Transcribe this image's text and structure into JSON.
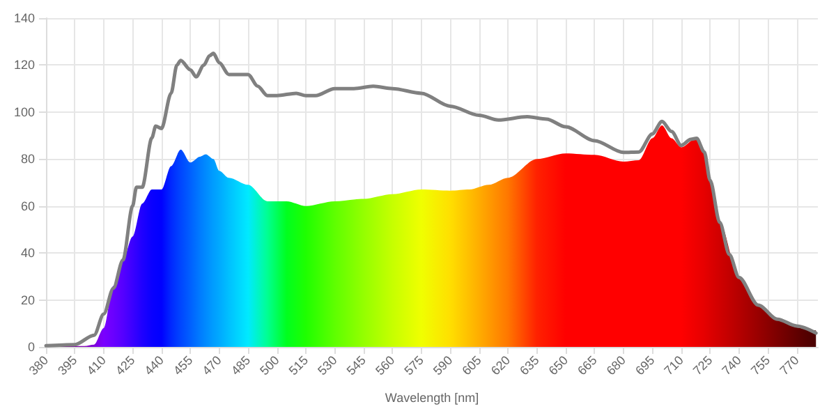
{
  "chart_data": {
    "type": "area",
    "xlabel": "Wavelength [nm]",
    "xlim": [
      380,
      781
    ],
    "xticks": [
      380,
      395,
      410,
      425,
      440,
      455,
      470,
      485,
      500,
      515,
      530,
      545,
      560,
      575,
      590,
      605,
      620,
      635,
      650,
      665,
      680,
      695,
      710,
      725,
      740,
      755,
      770
    ],
    "ylim": [
      0,
      140
    ],
    "yticks": [
      0,
      20,
      40,
      60,
      80,
      100,
      120,
      140
    ],
    "grid": true,
    "marker": "none",
    "line_style": "solid",
    "series": [
      {
        "x": [
          380,
          400,
          405,
          410,
          415,
          420,
          425,
          430,
          435,
          440,
          445,
          450,
          455,
          460,
          463,
          467,
          470,
          475,
          485,
          495,
          505,
          515,
          530,
          545,
          560,
          575,
          590,
          600,
          610,
          620,
          635,
          650,
          665,
          680,
          688,
          695,
          700,
          705,
          710,
          718,
          722,
          725,
          730,
          740,
          750,
          760,
          770,
          775,
          780
        ],
        "values": [
          0.2,
          0.4,
          1,
          8,
          26,
          37,
          47,
          61,
          67,
          67,
          77,
          84,
          78.5,
          81,
          82,
          80,
          75,
          72,
          69,
          62,
          62,
          60,
          62,
          63,
          65,
          67,
          66.5,
          67,
          69,
          72,
          80,
          82.4,
          81.8,
          78.9,
          79.5,
          88.8,
          94.3,
          88.8,
          85,
          89,
          83,
          71,
          53,
          29.6,
          17.4,
          12.2,
          8.3,
          7.5,
          7
        ],
        "colors": [
          "#610061",
          "#8300b5",
          "#7e00db",
          "#7a00ff",
          "#6a00ff",
          "#5500ff",
          "#3b00ff",
          "#1f00ff",
          "#0a00ff",
          "#0000ff",
          "#0028ff",
          "#0046ff",
          "#0060ff",
          "#007bff",
          "#008aff",
          "#009dff",
          "#00a9ff",
          "#00c0ff",
          "#00eaff",
          "#00ff92",
          "#00ff1f",
          "#1fff00",
          "#5eff00",
          "#94ff00",
          "#c6ff00",
          "#f0ff00",
          "#ffdf00",
          "#ffbe00",
          "#ff9b00",
          "#ff7700",
          "#ff2100",
          "#ff0000",
          "#ff0000",
          "#ff0000",
          "#ff0000",
          "#ff0000",
          "#ff0000",
          "#ff0000",
          "#ff0000",
          "#ee0000",
          "#e60000",
          "#dd0000",
          "#d00000",
          "#b50000",
          "#990000",
          "#7d0000",
          "#610000",
          "#540000",
          "#4a0000"
        ]
      },
      {
        "type": "line",
        "color": "#808080",
        "x": [
          380,
          395,
          405,
          410,
          415,
          420,
          425,
          427,
          430,
          435,
          437,
          440,
          445,
          448,
          450,
          455,
          458,
          462,
          465,
          467,
          470,
          475,
          485,
          490,
          495,
          500,
          510,
          515,
          520,
          530,
          540,
          550,
          560,
          575,
          590,
          605,
          615,
          630,
          640,
          650,
          665,
          680,
          688,
          695,
          700,
          705,
          710,
          715,
          718,
          722,
          725,
          730,
          735,
          740,
          750,
          760,
          770,
          780
        ],
        "values": [
          0.5,
          1,
          5,
          14,
          25,
          37,
          60,
          68,
          68,
          89,
          94,
          93,
          108,
          120,
          122,
          118,
          115,
          120,
          124,
          125,
          121,
          116,
          116,
          111,
          107,
          107,
          108,
          107,
          107,
          110,
          110,
          111,
          110,
          108,
          102.5,
          98.6,
          96.6,
          98,
          97,
          93.7,
          87.8,
          82.8,
          83,
          90.7,
          96,
          91.7,
          85.8,
          88.4,
          88.8,
          83,
          71,
          53,
          39.4,
          29.6,
          17.8,
          11.8,
          8.9,
          5.9
        ]
      }
    ]
  }
}
